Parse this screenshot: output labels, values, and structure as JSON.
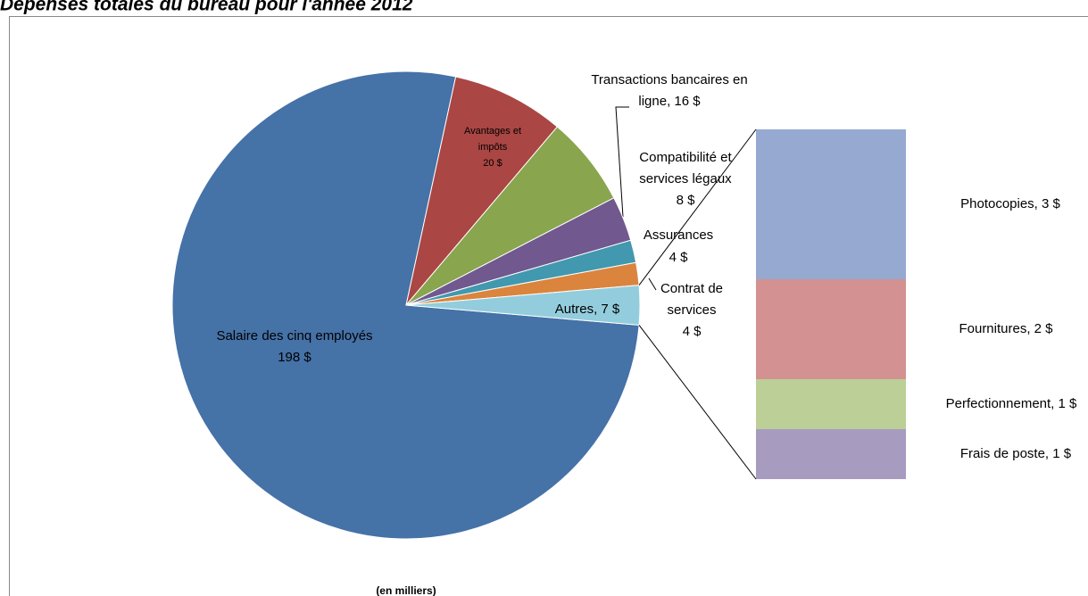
{
  "chart_data": {
    "type": "pie",
    "title": "Dépenses totales du bureau pour l'année 2012",
    "note": "(en milliers)",
    "labels": [
      [
        "Salaire des cinq employés",
        "198 $"
      ],
      [
        "Avantages et",
        "impôts",
        "20 $"
      ],
      [
        "Transactions bancaires en",
        "ligne, 16 $"
      ],
      [
        "Compatibilité et",
        "services légaux",
        "8 $"
      ],
      [
        "Assurances",
        "4 $"
      ],
      [
        "Contrat de",
        "services",
        "4 $"
      ],
      [
        "Autres, 7 $"
      ]
    ],
    "values": [
      198,
      20,
      16,
      8,
      4,
      4,
      7
    ],
    "colors": [
      "#4572A7",
      "#AA4643",
      "#89A54E",
      "#71588F",
      "#4198AF",
      "#DB843D",
      "#93CDDD"
    ],
    "breakdown": {
      "labels": [
        "Photocopies, 3 $",
        "Fournitures, 2 $",
        "Perfectionnement, 1 $",
        "Frais de poste, 1 $"
      ],
      "values": [
        3,
        2,
        1,
        1
      ],
      "colors": [
        "#95A9D1",
        "#D39291",
        "#BBCF96",
        "#A89BC0"
      ]
    }
  }
}
